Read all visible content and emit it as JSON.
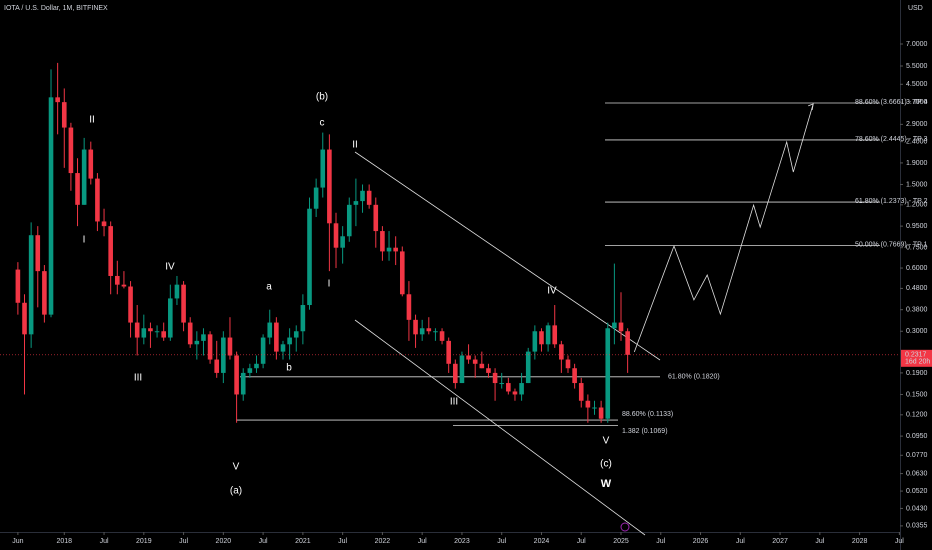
{
  "chart_data": {
    "type": "candlestick",
    "title": "IOTA / U.S. Dollar, 1M, BITFINEX",
    "currency": "USD",
    "log_scale": true,
    "colors": {
      "up": "#089981",
      "down": "#f23645"
    },
    "x": [
      "2017-06",
      "2017-07",
      "2017-08",
      "2017-09",
      "2017-10",
      "2017-11",
      "2017-12",
      "2018-01",
      "2018-02",
      "2018-03",
      "2018-04",
      "2018-05",
      "2018-06",
      "2018-07",
      "2018-08",
      "2018-09",
      "2018-10",
      "2018-11",
      "2018-12",
      "2019-01",
      "2019-02",
      "2019-03",
      "2019-04",
      "2019-05",
      "2019-06",
      "2019-07",
      "2019-08",
      "2019-09",
      "2019-10",
      "2019-11",
      "2019-12",
      "2020-01",
      "2020-02",
      "2020-03",
      "2020-04",
      "2020-05",
      "2020-06",
      "2020-07",
      "2020-08",
      "2020-09",
      "2020-10",
      "2020-11",
      "2020-12",
      "2021-01",
      "2021-02",
      "2021-03",
      "2021-04",
      "2021-05",
      "2021-06",
      "2021-07",
      "2021-08",
      "2021-09",
      "2021-10",
      "2021-11",
      "2021-12",
      "2022-01",
      "2022-02",
      "2022-03",
      "2022-04",
      "2022-05",
      "2022-06",
      "2022-07",
      "2022-08",
      "2022-09",
      "2022-10",
      "2022-11",
      "2022-12",
      "2023-01",
      "2023-02",
      "2023-03",
      "2023-04",
      "2023-05",
      "2023-06",
      "2023-07",
      "2023-08",
      "2023-09",
      "2023-10",
      "2023-11",
      "2023-12",
      "2024-01",
      "2024-02",
      "2024-03",
      "2024-04",
      "2024-05",
      "2024-06",
      "2024-07",
      "2024-08",
      "2024-09",
      "2024-10",
      "2024-11",
      "2024-12",
      "2025-01",
      "2025-02"
    ],
    "open": [
      0.59,
      0.41,
      0.29,
      0.86,
      0.58,
      0.36,
      3.9,
      3.7,
      2.8,
      1.7,
      1.2,
      2.2,
      1.6,
      1.0,
      0.95,
      0.55,
      0.5,
      0.49,
      0.33,
      0.28,
      0.31,
      0.3,
      0.3,
      0.28,
      0.43,
      0.5,
      0.33,
      0.26,
      0.27,
      0.29,
      0.22,
      0.19,
      0.28,
      0.23,
      0.15,
      0.19,
      0.2,
      0.21,
      0.28,
      0.33,
      0.24,
      0.26,
      0.28,
      0.3,
      0.4,
      1.15,
      1.45,
      2.2,
      0.98,
      0.75,
      0.85,
      1.2,
      1.25,
      1.4,
      1.2,
      0.9,
      0.72,
      0.75,
      0.72,
      0.45,
      0.34,
      0.29,
      0.31,
      0.3,
      0.3,
      0.27,
      0.21,
      0.17,
      0.23,
      0.22,
      0.21,
      0.2,
      0.19,
      0.17,
      0.17,
      0.155,
      0.15,
      0.17,
      0.24,
      0.3,
      0.26,
      0.32,
      0.26,
      0.22,
      0.2,
      0.17,
      0.14,
      0.13,
      0.13,
      0.115,
      0.31,
      0.33,
      0.3
    ],
    "high": [
      0.64,
      0.45,
      0.99,
      0.95,
      0.62,
      5.3,
      5.69,
      4.3,
      2.95,
      2.0,
      2.5,
      2.4,
      1.7,
      1.15,
      1.0,
      0.65,
      0.58,
      0.52,
      0.4,
      0.36,
      0.33,
      0.32,
      0.33,
      0.5,
      0.55,
      0.52,
      0.35,
      0.3,
      0.31,
      0.3,
      0.27,
      0.3,
      0.35,
      0.24,
      0.2,
      0.21,
      0.23,
      0.29,
      0.38,
      0.35,
      0.27,
      0.31,
      0.32,
      0.45,
      1.3,
      1.6,
      2.65,
      2.6,
      1.1,
      0.95,
      1.3,
      1.6,
      1.5,
      1.5,
      1.3,
      0.95,
      0.9,
      0.85,
      0.76,
      0.52,
      0.36,
      0.34,
      0.35,
      0.31,
      0.31,
      0.28,
      0.22,
      0.24,
      0.26,
      0.23,
      0.24,
      0.21,
      0.2,
      0.19,
      0.18,
      0.16,
      0.19,
      0.25,
      0.32,
      0.31,
      0.33,
      0.4,
      0.27,
      0.23,
      0.21,
      0.18,
      0.15,
      0.14,
      0.14,
      0.33,
      0.63,
      0.46,
      0.31
    ],
    "low": [
      0.36,
      0.15,
      0.25,
      0.39,
      0.33,
      0.35,
      2.6,
      1.8,
      1.4,
      0.95,
      1.2,
      1.5,
      0.9,
      0.85,
      0.45,
      0.45,
      0.48,
      0.28,
      0.23,
      0.26,
      0.25,
      0.28,
      0.27,
      0.27,
      0.4,
      0.3,
      0.25,
      0.22,
      0.23,
      0.21,
      0.18,
      0.17,
      0.22,
      0.11,
      0.14,
      0.18,
      0.19,
      0.2,
      0.26,
      0.22,
      0.22,
      0.22,
      0.24,
      0.26,
      0.38,
      1.05,
      1.3,
      0.58,
      0.6,
      0.63,
      0.8,
      0.95,
      1.1,
      1.15,
      0.75,
      0.65,
      0.65,
      0.62,
      0.44,
      0.27,
      0.25,
      0.27,
      0.29,
      0.27,
      0.26,
      0.19,
      0.16,
      0.17,
      0.21,
      0.18,
      0.2,
      0.18,
      0.14,
      0.16,
      0.15,
      0.14,
      0.14,
      0.17,
      0.22,
      0.24,
      0.24,
      0.25,
      0.19,
      0.19,
      0.16,
      0.13,
      0.11,
      0.12,
      0.11,
      0.11,
      0.26,
      0.27,
      0.19
    ],
    "close": [
      0.41,
      0.29,
      0.86,
      0.58,
      0.36,
      3.9,
      3.7,
      2.8,
      1.7,
      1.2,
      2.2,
      1.6,
      1.0,
      0.95,
      0.55,
      0.5,
      0.49,
      0.33,
      0.28,
      0.31,
      0.3,
      0.3,
      0.28,
      0.43,
      0.5,
      0.33,
      0.26,
      0.27,
      0.29,
      0.22,
      0.19,
      0.28,
      0.23,
      0.15,
      0.19,
      0.2,
      0.21,
      0.28,
      0.33,
      0.24,
      0.26,
      0.28,
      0.3,
      0.4,
      1.15,
      1.45,
      2.2,
      0.98,
      0.75,
      0.85,
      1.2,
      1.25,
      1.4,
      1.2,
      0.9,
      0.72,
      0.75,
      0.72,
      0.45,
      0.34,
      0.29,
      0.31,
      0.3,
      0.3,
      0.27,
      0.21,
      0.17,
      0.23,
      0.22,
      0.21,
      0.2,
      0.19,
      0.17,
      0.17,
      0.155,
      0.15,
      0.17,
      0.24,
      0.3,
      0.26,
      0.32,
      0.26,
      0.22,
      0.2,
      0.17,
      0.14,
      0.13,
      0.13,
      0.115,
      0.31,
      0.33,
      0.3,
      0.2317
    ],
    "last_price": 0.2317,
    "countdown": "16d 20h",
    "xlim": [
      "2017-03",
      "2028-08"
    ],
    "ylim": [
      0.0332,
      11.34
    ],
    "xticks": [
      {
        "value": "2017-06",
        "label": "Jun"
      },
      {
        "value": "2018-01",
        "label": "2018"
      },
      {
        "value": "2018-07",
        "label": "Jul"
      },
      {
        "value": "2019-01",
        "label": "2019"
      },
      {
        "value": "2019-07",
        "label": "Jul"
      },
      {
        "value": "2020-01",
        "label": "2020"
      },
      {
        "value": "2020-07",
        "label": "Jul"
      },
      {
        "value": "2021-01",
        "label": "2021"
      },
      {
        "value": "2021-07",
        "label": "Jul"
      },
      {
        "value": "2022-01",
        "label": "2022"
      },
      {
        "value": "2022-07",
        "label": "Jul"
      },
      {
        "value": "2023-01",
        "label": "2023"
      },
      {
        "value": "2023-07",
        "label": "Jul"
      },
      {
        "value": "2024-01",
        "label": "2024"
      },
      {
        "value": "2024-07",
        "label": "Jul"
      },
      {
        "value": "2025-01",
        "label": "2025"
      },
      {
        "value": "2025-07",
        "label": "Jul"
      },
      {
        "value": "2026-01",
        "label": "2026"
      },
      {
        "value": "2026-07",
        "label": "Jul"
      },
      {
        "value": "2027-01",
        "label": "2027"
      },
      {
        "value": "2027-07",
        "label": "Jul"
      },
      {
        "value": "2028-01",
        "label": "2028"
      },
      {
        "value": "2028-07",
        "label": "Jul"
      }
    ],
    "yticks": [
      {
        "value": 7,
        "label": "7.0000"
      },
      {
        "value": 5.5,
        "label": "5.5000"
      },
      {
        "value": 4.5,
        "label": "4.5000"
      },
      {
        "value": 3.7,
        "label": "3.7000"
      },
      {
        "value": 2.9,
        "label": "2.9000"
      },
      {
        "value": 2.4,
        "label": "2.4000"
      },
      {
        "value": 1.9,
        "label": "1.9000"
      },
      {
        "value": 1.5,
        "label": "1.5000"
      },
      {
        "value": 1.2,
        "label": "1.2000"
      },
      {
        "value": 0.95,
        "label": "0.9500"
      },
      {
        "value": 0.75,
        "label": "0.7500"
      },
      {
        "value": 0.6,
        "label": "0.6000"
      },
      {
        "value": 0.48,
        "label": "0.4800"
      },
      {
        "value": 0.38,
        "label": "0.3800"
      },
      {
        "value": 0.3,
        "label": "0.3000"
      },
      {
        "value": 0.19,
        "label": "0.1900"
      },
      {
        "value": 0.15,
        "label": "0.1500"
      },
      {
        "value": 0.12,
        "label": "0.1200"
      },
      {
        "value": 0.095,
        "label": "0.0950"
      },
      {
        "value": 0.077,
        "label": "0.0770"
      },
      {
        "value": 0.063,
        "label": "0.0630"
      },
      {
        "value": 0.052,
        "label": "0.0520"
      },
      {
        "value": 0.043,
        "label": "0.0430"
      },
      {
        "value": 0.0355,
        "label": "0.0355"
      }
    ],
    "levels": [
      {
        "label": "88.60% (3.6661) - TP 4",
        "value": 3.6661
      },
      {
        "label": "78.60% (2.4445) - TP 3",
        "value": 2.4445
      },
      {
        "label": "61.80% (1.2373) - TP 2",
        "value": 1.2373
      },
      {
        "label": "50.00% (0.7669) - TP 1",
        "value": 0.7669
      },
      {
        "label": "61.80% (0.1820)",
        "value": 0.182
      },
      {
        "label": "88.60% (0.1133)",
        "value": 0.1133
      },
      {
        "label": "1.382 (0.1069)",
        "value": 0.1069
      }
    ],
    "projection": {
      "x": [
        "2025-03",
        "2025-09",
        "2025-12",
        "2026-02",
        "2026-04",
        "2026-09",
        "2026-10",
        "2027-02",
        "2027-03",
        "2027-06"
      ],
      "values": [
        0.239,
        0.764,
        0.423,
        0.556,
        0.362,
        1.197,
        0.94,
        2.39,
        1.72,
        3.63
      ]
    },
    "annotations": [
      "II",
      "I",
      "III",
      "IV",
      "V",
      "(a)",
      "a",
      "b",
      "I",
      "c",
      "(b)",
      "II",
      "III",
      "IV",
      "V",
      "(c)",
      "W"
    ]
  }
}
